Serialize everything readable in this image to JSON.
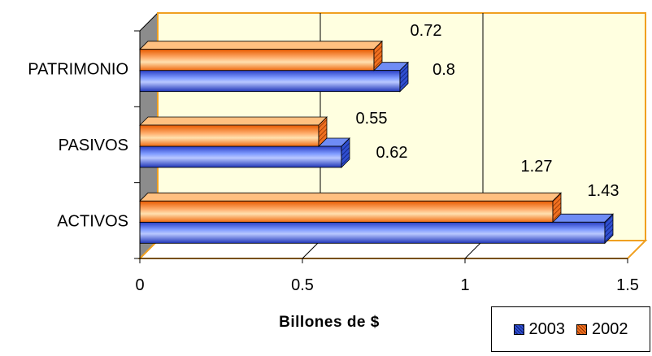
{
  "chart_data": {
    "type": "bar",
    "orientation": "horizontal",
    "categories": [
      "ACTIVOS",
      "PASIVOS",
      "PATRIMONIO"
    ],
    "series": [
      {
        "name": "2003",
        "values": [
          1.43,
          0.62,
          0.8
        ],
        "labels": [
          "1.43",
          "0.62",
          "0.8"
        ],
        "color": "#3b5bdc"
      },
      {
        "name": "2002",
        "values": [
          1.27,
          0.55,
          0.72
        ],
        "labels": [
          "1.27",
          "0.55",
          "0.72"
        ],
        "color": "#ff7a1a"
      }
    ],
    "xlabel": "Billones de $",
    "ylabel": "",
    "xlim": [
      0,
      1.5
    ],
    "xticks": [
      "0",
      "0.5",
      "1",
      "1.5"
    ],
    "grid": true,
    "legend_position": "bottom-right"
  },
  "colors": {
    "wall": "#ffffe0",
    "wall_border": "#f0a020",
    "side_wall": "#8c8c8c",
    "gridline": "#000000"
  }
}
